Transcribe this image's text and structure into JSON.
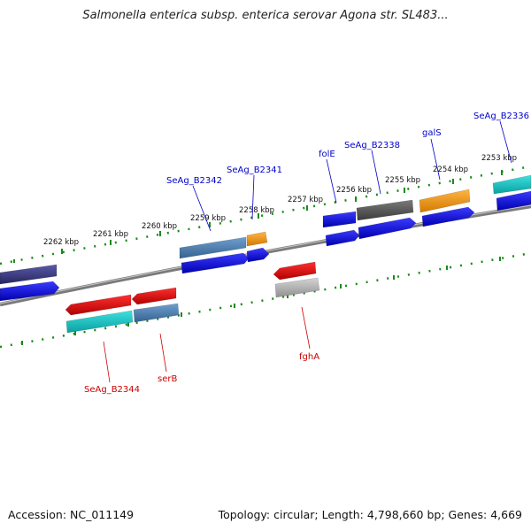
{
  "title": "Salmonella enterica subsp. enterica serovar Agona str. SL483...",
  "footer": {
    "accession": "Accession: NC_011149",
    "topology": "Topology: circular; Length: 4,798,660 bp; Genes: 4,669"
  },
  "colors": {
    "cds_blue": "#0a0ad8",
    "red": "#e00000",
    "cyan": "#14c8c8",
    "steel": "#4f83b8",
    "orange": "#f39c12",
    "dark_gray": "#555555",
    "navy": "#3b3b85",
    "light_gray": "#b4b4b4",
    "ticks": "#1a8a1a",
    "backbone": "#808080",
    "label_plus": "#0000cc",
    "label_minus": "#cc0000"
  },
  "ticks": [
    "2262 kbp",
    "2261 kbp",
    "2260 kbp",
    "2259 kbp",
    "2258 kbp",
    "2257 kbp",
    "2256 kbp",
    "2255 kbp",
    "2254 kbp",
    "2253 kbp"
  ],
  "labels": {
    "plus": [
      "SeAg_B2342",
      "SeAg_B2341",
      "folE",
      "SeAg_B2338",
      "galS",
      "SeAg_B2336"
    ],
    "minus": [
      "SeAg_B2344",
      "serB",
      "fghA"
    ]
  }
}
